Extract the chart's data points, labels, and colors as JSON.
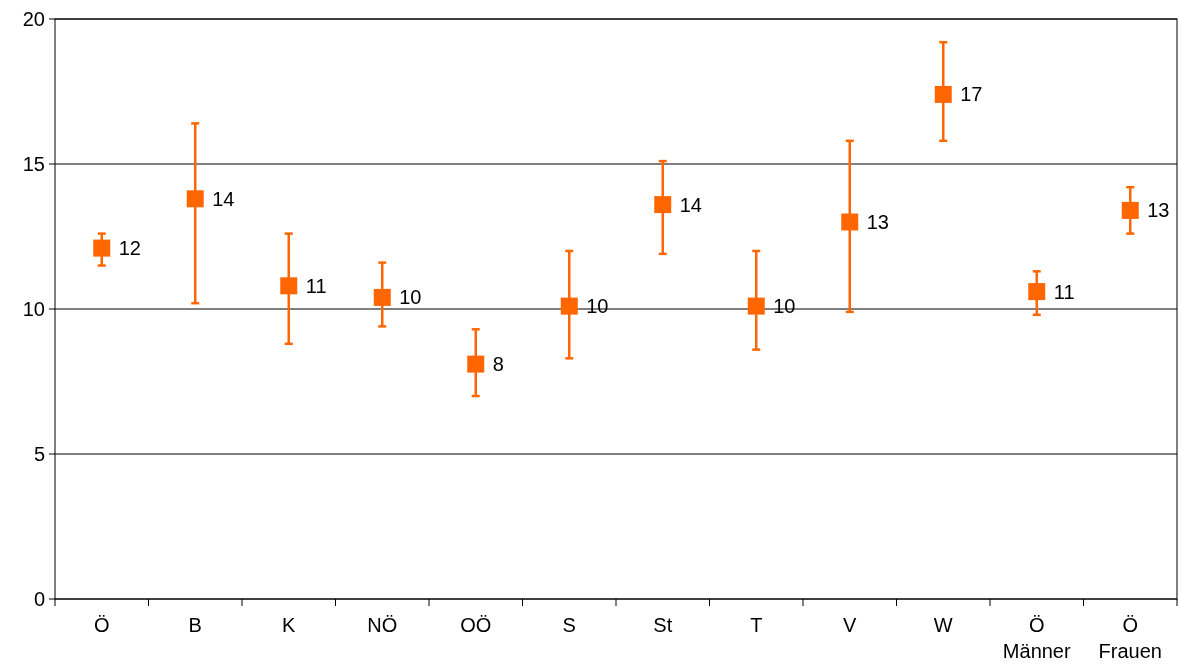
{
  "chart_data": {
    "type": "scatter",
    "categories": [
      "Ö",
      "B",
      "K",
      "NÖ",
      "OÖ",
      "S",
      "St",
      "T",
      "V",
      "W",
      "Ö\nMänner",
      "Ö\nFrauen"
    ],
    "series": [
      {
        "color": "#ff6600",
        "values": [
          12.1,
          13.8,
          10.8,
          10.4,
          8.1,
          10.1,
          13.6,
          10.1,
          13.0,
          17.4,
          10.6,
          13.4
        ],
        "errors": [
          [
            11.5,
            12.6
          ],
          [
            10.2,
            16.4
          ],
          [
            8.8,
            12.6
          ],
          [
            9.4,
            11.6
          ],
          [
            7.0,
            9.3
          ],
          [
            8.3,
            12.0
          ],
          [
            11.9,
            15.1
          ],
          [
            8.6,
            12.0
          ],
          [
            9.9,
            15.8
          ],
          [
            15.8,
            19.2
          ],
          [
            9.8,
            11.3
          ],
          [
            12.6,
            14.2
          ]
        ],
        "value_labels": [
          "12",
          "14",
          "11",
          "10",
          "8",
          "10",
          "14",
          "10",
          "13",
          "17",
          "11",
          "13"
        ]
      }
    ],
    "ylim": [
      0,
      20
    ],
    "yticks": [
      0,
      5,
      10,
      15,
      20
    ],
    "grid": "y",
    "marker": "square"
  }
}
